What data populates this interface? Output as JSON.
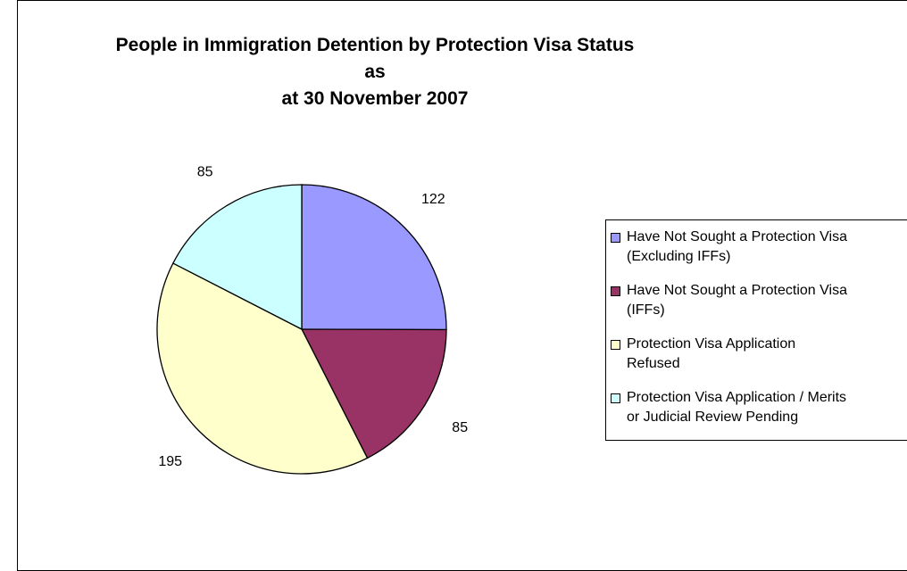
{
  "chart_data": {
    "type": "pie",
    "title_lines": [
      "People in Immigration Detention by Protection Visa Status as",
      "at 30 November 2007"
    ],
    "slices": [
      {
        "label_lines": [
          "Have Not Sought a Protection Visa",
          "(Excluding IFFs)"
        ],
        "value": 122,
        "value_label": "122",
        "color": "#9999FF"
      },
      {
        "label_lines": [
          "Have Not Sought a Protection Visa",
          "(IFFs)"
        ],
        "value": 85,
        "value_label": "85",
        "color": "#993366"
      },
      {
        "label_lines": [
          "Protection Visa Application",
          "Refused"
        ],
        "value": 195,
        "value_label": "195",
        "color": "#FFFFCC"
      },
      {
        "label_lines": [
          "Protection Visa Application / Merits",
          "or Judicial Review  Pending"
        ],
        "value": 85,
        "value_label": "85",
        "color": "#CCFFFF"
      }
    ],
    "legend_position": "right"
  }
}
